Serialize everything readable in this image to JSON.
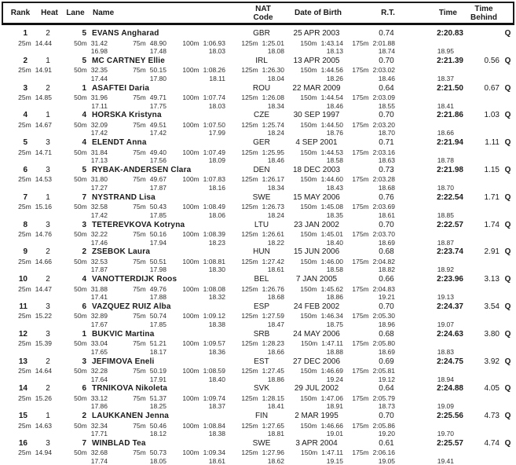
{
  "header": {
    "rank": "Rank",
    "heat": "Heat",
    "lane": "Lane",
    "name": "Name",
    "nat_line1": "NAT",
    "nat_line2": "Code",
    "date_of_birth": "Date of Birth",
    "reaction_time": "R.T.",
    "time": "Time",
    "behind_line1": "Time",
    "behind_line2": "Behind"
  },
  "split_labels": [
    "25m",
    "50m",
    "75m",
    "100m",
    "125m",
    "150m",
    "175m"
  ],
  "rows": [
    {
      "rank": "1",
      "heat": "2",
      "lane": "5",
      "name": "EVANS Angharad",
      "nat": "GBR",
      "dob": "25 APR 2003",
      "rt": "0.74",
      "time": "2:20.83",
      "behind": "",
      "q": "Q",
      "splits": [
        "14.44",
        "31.42",
        "48.90",
        "1:06.93",
        "1:25.01",
        "1:43.14",
        "2:01.88"
      ],
      "laps": [
        "16.98",
        "17.48",
        "18.03",
        "18.08",
        "18.13",
        "18.74",
        "18.95"
      ]
    },
    {
      "rank": "2",
      "heat": "1",
      "lane": "5",
      "name": "MC CARTNEY Ellie",
      "nat": "IRL",
      "dob": "13 APR 2005",
      "rt": "0.70",
      "time": "2:21.39",
      "behind": "0.56",
      "q": "Q",
      "splits": [
        "14.91",
        "32.35",
        "50.15",
        "1:08.26",
        "1:26.30",
        "1:44.56",
        "2:03.02"
      ],
      "laps": [
        "17.44",
        "17.80",
        "18.11",
        "18.04",
        "18.26",
        "18.46",
        "18.37"
      ]
    },
    {
      "rank": "3",
      "heat": "2",
      "lane": "1",
      "name": "ASAFTEI Daria",
      "nat": "ROU",
      "dob": "22 MAR 2009",
      "rt": "0.64",
      "time": "2:21.50",
      "behind": "0.67",
      "q": "Q",
      "splits": [
        "14.85",
        "31.96",
        "49.71",
        "1:07.74",
        "1:26.08",
        "1:44.54",
        "2:03.09"
      ],
      "laps": [
        "17.11",
        "17.75",
        "18.03",
        "18.34",
        "18.46",
        "18.55",
        "18.41"
      ]
    },
    {
      "rank": "4",
      "heat": "1",
      "lane": "4",
      "name": "HORSKA Kristyna",
      "nat": "CZE",
      "dob": "30 SEP 1997",
      "rt": "0.70",
      "time": "2:21.86",
      "behind": "1.03",
      "q": "Q",
      "splits": [
        "14.67",
        "32.09",
        "49.51",
        "1:07.50",
        "1:25.74",
        "1:44.50",
        "2:03.20"
      ],
      "laps": [
        "17.42",
        "17.42",
        "17.99",
        "18.24",
        "18.76",
        "18.70",
        "18.66"
      ]
    },
    {
      "rank": "5",
      "heat": "3",
      "lane": "4",
      "name": "ELENDT Anna",
      "nat": "GER",
      "dob": "4 SEP 2001",
      "rt": "0.71",
      "time": "2:21.94",
      "behind": "1.11",
      "q": "Q",
      "splits": [
        "14.71",
        "31.84",
        "49.40",
        "1:07.49",
        "1:25.95",
        "1:44.53",
        "2:03.16"
      ],
      "laps": [
        "17.13",
        "17.56",
        "18.09",
        "18.46",
        "18.58",
        "18.63",
        "18.78"
      ]
    },
    {
      "rank": "6",
      "heat": "3",
      "lane": "5",
      "name": "RYBAK-ANDERSEN Clara",
      "nat": "DEN",
      "dob": "18 DEC 2003",
      "rt": "0.73",
      "time": "2:21.98",
      "behind": "1.15",
      "q": "Q",
      "splits": [
        "14.53",
        "31.80",
        "49.67",
        "1:07.83",
        "1:26.17",
        "1:44.60",
        "2:03.28"
      ],
      "laps": [
        "17.27",
        "17.87",
        "18.16",
        "18.34",
        "18.43",
        "18.68",
        "18.70"
      ]
    },
    {
      "rank": "7",
      "heat": "1",
      "lane": "7",
      "name": "NYSTRAND Lisa",
      "nat": "SWE",
      "dob": "15 MAY 2006",
      "rt": "0.76",
      "time": "2:22.54",
      "behind": "1.71",
      "q": "Q",
      "splits": [
        "15.16",
        "32.58",
        "50.43",
        "1:08.49",
        "1:26.73",
        "1:45.08",
        "2:03.69"
      ],
      "laps": [
        "17.42",
        "17.85",
        "18.06",
        "18.24",
        "18.35",
        "18.61",
        "18.85"
      ]
    },
    {
      "rank": "8",
      "heat": "3",
      "lane": "3",
      "name": "TETEREVKOVA Kotryna",
      "nat": "LTU",
      "dob": "23 JAN 2002",
      "rt": "0.70",
      "time": "2:22.57",
      "behind": "1.74",
      "q": "Q",
      "splits": [
        "14.76",
        "32.22",
        "50.16",
        "1:08.39",
        "1:26.61",
        "1:45.01",
        "2:03.70"
      ],
      "laps": [
        "17.46",
        "17.94",
        "18.23",
        "18.22",
        "18.40",
        "18.69",
        "18.87"
      ]
    },
    {
      "rank": "9",
      "heat": "2",
      "lane": "2",
      "name": "ZSEBOK Laura",
      "nat": "HUN",
      "dob": "15 JUN 2006",
      "rt": "0.68",
      "time": "2:23.74",
      "behind": "2.91",
      "q": "Q",
      "splits": [
        "14.66",
        "32.53",
        "50.51",
        "1:08.81",
        "1:27.42",
        "1:46.00",
        "2:04.82"
      ],
      "laps": [
        "17.87",
        "17.98",
        "18.30",
        "18.61",
        "18.58",
        "18.82",
        "18.92"
      ]
    },
    {
      "rank": "10",
      "heat": "2",
      "lane": "4",
      "name": "VANOTTERDIJK Roos",
      "nat": "BEL",
      "dob": "7 JAN 2005",
      "rt": "0.66",
      "time": "2:23.96",
      "behind": "3.13",
      "q": "Q",
      "splits": [
        "14.47",
        "31.88",
        "49.76",
        "1:08.08",
        "1:26.76",
        "1:45.62",
        "2:04.83"
      ],
      "laps": [
        "17.41",
        "17.88",
        "18.32",
        "18.68",
        "18.86",
        "19.21",
        "19.13"
      ]
    },
    {
      "rank": "11",
      "heat": "3",
      "lane": "6",
      "name": "VAZQUEZ RUIZ Alba",
      "nat": "ESP",
      "dob": "24 FEB 2002",
      "rt": "0.70",
      "time": "2:24.37",
      "behind": "3.54",
      "q": "Q",
      "splits": [
        "15.22",
        "32.89",
        "50.74",
        "1:09.12",
        "1:27.59",
        "1:46.34",
        "2:05.30"
      ],
      "laps": [
        "17.67",
        "17.85",
        "18.38",
        "18.47",
        "18.75",
        "18.96",
        "19.07"
      ]
    },
    {
      "rank": "12",
      "heat": "3",
      "lane": "1",
      "name": "BUKVIC Martina",
      "nat": "SRB",
      "dob": "24 MAY 2006",
      "rt": "0.68",
      "time": "2:24.63",
      "behind": "3.80",
      "q": "Q",
      "splits": [
        "15.39",
        "33.04",
        "51.21",
        "1:09.57",
        "1:28.23",
        "1:47.11",
        "2:05.80"
      ],
      "laps": [
        "17.65",
        "18.17",
        "18.36",
        "18.66",
        "18.88",
        "18.69",
        "18.83"
      ]
    },
    {
      "rank": "13",
      "heat": "2",
      "lane": "3",
      "name": "JEFIMOVA Eneli",
      "nat": "EST",
      "dob": "27 DEC 2006",
      "rt": "0.69",
      "time": "2:24.75",
      "behind": "3.92",
      "q": "Q",
      "splits": [
        "14.64",
        "32.28",
        "50.19",
        "1:08.59",
        "1:27.45",
        "1:46.69",
        "2:05.81"
      ],
      "laps": [
        "17.64",
        "17.91",
        "18.40",
        "18.86",
        "19.24",
        "19.12",
        "18.94"
      ]
    },
    {
      "rank": "14",
      "heat": "2",
      "lane": "6",
      "name": "TRNIKOVA Nikoleta",
      "nat": "SVK",
      "dob": "29 JUL 2002",
      "rt": "0.64",
      "time": "2:24.88",
      "behind": "4.05",
      "q": "Q",
      "splits": [
        "15.26",
        "33.12",
        "51.37",
        "1:09.74",
        "1:28.15",
        "1:47.06",
        "2:05.79"
      ],
      "laps": [
        "17.86",
        "18.25",
        "18.37",
        "18.41",
        "18.91",
        "18.73",
        "19.09"
      ]
    },
    {
      "rank": "15",
      "heat": "1",
      "lane": "2",
      "name": "LAUKKANEN Jenna",
      "nat": "FIN",
      "dob": "2 MAR 1995",
      "rt": "0.70",
      "time": "2:25.56",
      "behind": "4.73",
      "q": "Q",
      "splits": [
        "14.63",
        "32.34",
        "50.46",
        "1:08.84",
        "1:27.65",
        "1:46.66",
        "2:05.86"
      ],
      "laps": [
        "17.71",
        "18.12",
        "18.38",
        "18.81",
        "19.01",
        "19.20",
        "19.70"
      ]
    },
    {
      "rank": "16",
      "heat": "3",
      "lane": "7",
      "name": "WINBLAD Tea",
      "nat": "SWE",
      "dob": "3 APR 2004",
      "rt": "0.61",
      "time": "2:25.57",
      "behind": "4.74",
      "q": "Q",
      "splits": [
        "14.94",
        "32.68",
        "50.73",
        "1:09.34",
        "1:27.96",
        "1:47.11",
        "2:06.16"
      ],
      "laps": [
        "17.74",
        "18.05",
        "18.61",
        "18.62",
        "19.15",
        "19.05",
        "19.41"
      ]
    }
  ]
}
